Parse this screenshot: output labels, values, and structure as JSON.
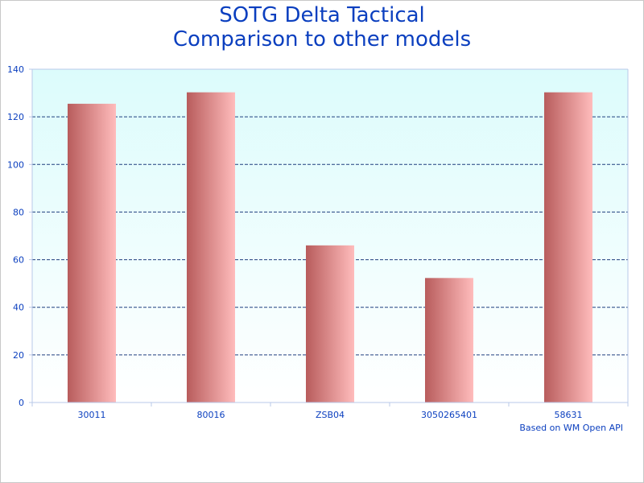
{
  "chart_data": {
    "type": "bar",
    "title_lines": [
      "SOTG Delta Tactical",
      "Comparison to other models"
    ],
    "categories": [
      "30011",
      "80016",
      "ZSB04",
      "3050265401",
      "58631"
    ],
    "values": [
      125.5,
      130.3,
      66,
      52.3,
      130.3
    ],
    "ylim": [
      0,
      140
    ],
    "yticks": [
      0,
      20,
      40,
      60,
      80,
      100,
      120,
      140
    ],
    "xlabel": "",
    "ylabel": "",
    "grid": true,
    "footnote": "Based on WM Open API"
  },
  "colors": {
    "title": "#0b3fbf",
    "axis_text": "#0b3fbf",
    "plot_bg_top": "#dcfcfc",
    "plot_bg_bottom": "#ffffff",
    "grid": "#1f3f7f",
    "axis": "#b8c8e8",
    "bar_dark": "#b85c5c",
    "bar_light": "#ffbcbc"
  }
}
